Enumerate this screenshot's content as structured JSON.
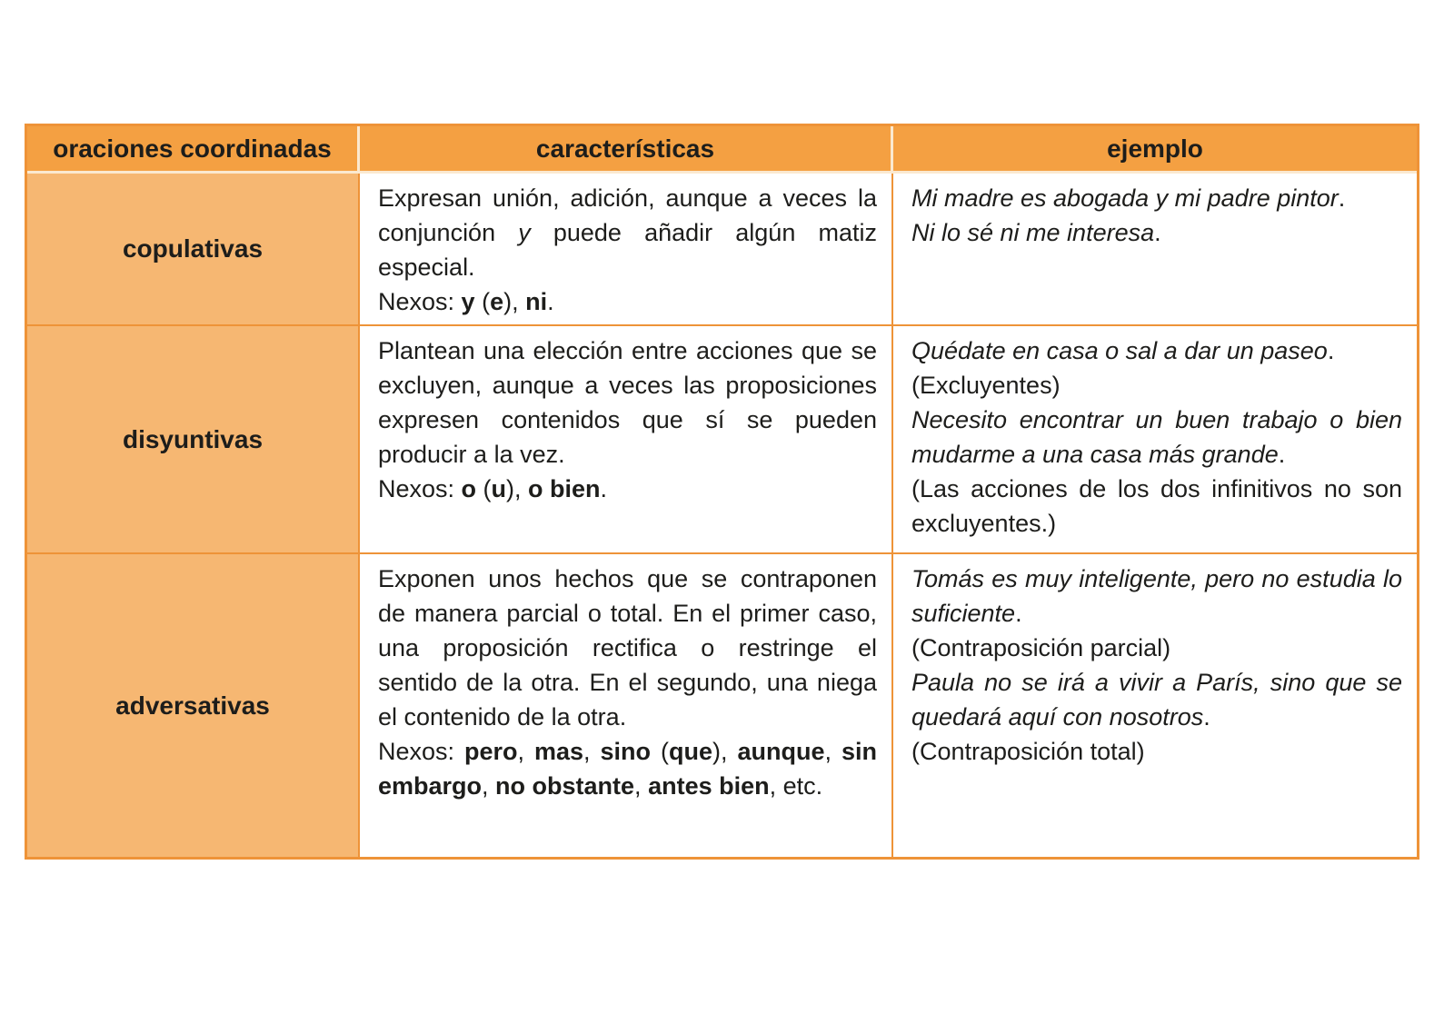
{
  "colors": {
    "header_bg": "#f4a042",
    "label_bg": "#f6b772",
    "border": "#ee9338",
    "header_divider": "#fbe9d0",
    "text": "#1d1d1b",
    "page_bg": "#ffffff"
  },
  "table": {
    "headers": [
      "oraciones coordinadas",
      "características",
      "ejemplo"
    ],
    "rows": [
      {
        "label": "copulativas",
        "caracteristicas": [
          [
            {
              "t": "Expresan unión, adición, aunque a veces la conjunción ",
              "s": "n"
            },
            {
              "t": "y",
              "s": "i"
            },
            {
              "t": " puede añadir algún matiz especial.",
              "s": "n"
            }
          ],
          [
            {
              "t": "Nexos: ",
              "s": "n"
            },
            {
              "t": "y",
              "s": "b"
            },
            {
              "t": " (",
              "s": "n"
            },
            {
              "t": "e",
              "s": "b"
            },
            {
              "t": "), ",
              "s": "n"
            },
            {
              "t": "ni",
              "s": "b"
            },
            {
              "t": ".",
              "s": "n"
            }
          ]
        ],
        "ejemplo": [
          [
            {
              "t": "Mi madre es abogada y mi padre pintor",
              "s": "i"
            },
            {
              "t": ".",
              "s": "n"
            }
          ],
          [
            {
              "t": "Ni lo sé ni me interesa",
              "s": "i"
            },
            {
              "t": ".",
              "s": "n"
            }
          ]
        ]
      },
      {
        "label": "disyuntivas",
        "caracteristicas": [
          [
            {
              "t": "Plantean una elección entre acciones que se excluyen, aunque a veces las proposiciones expresen contenidos que sí se pueden producir a la vez.",
              "s": "n"
            }
          ],
          [
            {
              "t": "Nexos: ",
              "s": "n"
            },
            {
              "t": "o",
              "s": "b"
            },
            {
              "t": " (",
              "s": "n"
            },
            {
              "t": "u",
              "s": "b"
            },
            {
              "t": "), ",
              "s": "n"
            },
            {
              "t": "o bien",
              "s": "b"
            },
            {
              "t": ".",
              "s": "n"
            }
          ]
        ],
        "ejemplo": [
          [
            {
              "t": "Quédate en casa o sal a dar un paseo",
              "s": "i"
            },
            {
              "t": ".",
              "s": "n"
            }
          ],
          [
            {
              "t": "(Excluyentes)",
              "s": "n"
            }
          ],
          [
            {
              "t": "Necesito encontrar un buen trabajo o bien mudarme a una casa más grande",
              "s": "i"
            },
            {
              "t": ".",
              "s": "n"
            }
          ],
          [
            {
              "t": "(Las acciones de los dos infinitivos no son excluyentes.)",
              "s": "n"
            }
          ]
        ]
      },
      {
        "label": "adversativas",
        "caracteristicas": [
          [
            {
              "t": "Exponen unos hechos que se contraponen de manera parcial o total. En el primer caso, una proposición rectifica o restringe el sentido de la otra. En el segundo, una niega el contenido de la otra.",
              "s": "n"
            }
          ],
          [
            {
              "t": "Nexos: ",
              "s": "n"
            },
            {
              "t": "pero",
              "s": "b"
            },
            {
              "t": ", ",
              "s": "n"
            },
            {
              "t": "mas",
              "s": "b"
            },
            {
              "t": ", ",
              "s": "n"
            },
            {
              "t": "sino",
              "s": "b"
            },
            {
              "t": " (",
              "s": "n"
            },
            {
              "t": "que",
              "s": "b"
            },
            {
              "t": "), ",
              "s": "n"
            },
            {
              "t": "aunque",
              "s": "b"
            },
            {
              "t": ", ",
              "s": "n"
            },
            {
              "t": "sin embargo",
              "s": "b"
            },
            {
              "t": ", ",
              "s": "n"
            },
            {
              "t": "no obstante",
              "s": "b"
            },
            {
              "t": ", ",
              "s": "n"
            },
            {
              "t": "antes bien",
              "s": "b"
            },
            {
              "t": ", etc.",
              "s": "n"
            }
          ]
        ],
        "ejemplo": [
          [
            {
              "t": "Tomás es muy inteligente, pero no estudia lo suficiente",
              "s": "i"
            },
            {
              "t": ".",
              "s": "n"
            }
          ],
          [
            {
              "t": "(Contraposición parcial)",
              "s": "n"
            }
          ],
          [
            {
              "t": "Paula no se irá a vivir a París, sino que se quedará aquí con nosotros",
              "s": "i"
            },
            {
              "t": ".",
              "s": "n"
            }
          ],
          [
            {
              "t": "(Contraposición total)",
              "s": "n"
            }
          ]
        ]
      }
    ]
  }
}
